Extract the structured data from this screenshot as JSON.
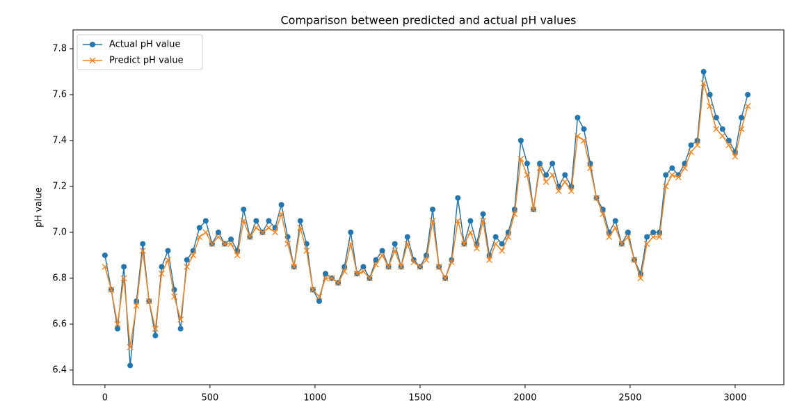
{
  "chart_data": {
    "type": "line",
    "title": "Comparison between predicted and actual pH values",
    "y_label": "pH value",
    "x": [
      0,
      30,
      60,
      90,
      120,
      150,
      180,
      210,
      240,
      270,
      300,
      330,
      360,
      390,
      420,
      450,
      480,
      510,
      540,
      570,
      600,
      630,
      660,
      690,
      720,
      750,
      780,
      810,
      840,
      870,
      900,
      930,
      960,
      990,
      1020,
      1050,
      1080,
      1110,
      1140,
      1170,
      1200,
      1230,
      1260,
      1290,
      1320,
      1350,
      1380,
      1410,
      1440,
      1470,
      1500,
      1530,
      1560,
      1590,
      1620,
      1650,
      1680,
      1710,
      1740,
      1770,
      1800,
      1830,
      1860,
      1890,
      1920,
      1950,
      1980,
      2010,
      2040,
      2070,
      2100,
      2130,
      2160,
      2190,
      2220,
      2250,
      2280,
      2310,
      2340,
      2370,
      2400,
      2430,
      2460,
      2490,
      2520,
      2550,
      2580,
      2610,
      2640,
      2670,
      2700,
      2730,
      2760,
      2790,
      2820,
      2850,
      2880,
      2910,
      2940,
      2970,
      3000,
      3030,
      3060
    ],
    "series": [
      {
        "name": "Actual pH value",
        "color": "#1f77b4",
        "marker": "o",
        "values": [
          6.9,
          6.75,
          6.58,
          6.85,
          6.42,
          6.7,
          6.95,
          6.7,
          6.55,
          6.85,
          6.92,
          6.75,
          6.58,
          6.88,
          6.92,
          7.02,
          7.05,
          6.95,
          7.0,
          6.95,
          6.97,
          6.92,
          7.1,
          6.98,
          7.05,
          7.0,
          7.05,
          7.02,
          7.12,
          6.98,
          6.85,
          7.05,
          6.95,
          6.75,
          6.7,
          6.82,
          6.8,
          6.78,
          6.85,
          7.0,
          6.82,
          6.85,
          6.8,
          6.88,
          6.92,
          6.85,
          6.95,
          6.85,
          6.98,
          6.88,
          6.85,
          6.9,
          7.1,
          6.85,
          6.8,
          6.88,
          7.15,
          6.95,
          7.05,
          6.95,
          7.08,
          6.9,
          6.98,
          6.95,
          7.0,
          7.1,
          7.4,
          7.3,
          7.1,
          7.3,
          7.25,
          7.3,
          7.2,
          7.25,
          7.2,
          7.5,
          7.45,
          7.3,
          7.15,
          7.1,
          7.0,
          7.05,
          6.95,
          7.0,
          6.88,
          6.82,
          6.98,
          7.0,
          7.0,
          7.25,
          7.28,
          7.25,
          7.3,
          7.38,
          7.4,
          7.7,
          7.6,
          7.5,
          7.45,
          7.4,
          7.35,
          7.5,
          7.6
        ]
      },
      {
        "name": "Predict pH value",
        "color": "#ff7f0e",
        "marker": "x",
        "values": [
          6.85,
          6.75,
          6.6,
          6.8,
          6.5,
          6.68,
          6.92,
          6.7,
          6.58,
          6.82,
          6.88,
          6.72,
          6.62,
          6.85,
          6.9,
          6.98,
          7.0,
          6.95,
          6.98,
          6.95,
          6.95,
          6.9,
          7.05,
          6.98,
          7.02,
          7.0,
          7.02,
          7.0,
          7.08,
          6.95,
          6.85,
          7.02,
          6.92,
          6.75,
          6.72,
          6.8,
          6.8,
          6.78,
          6.83,
          6.95,
          6.82,
          6.83,
          6.8,
          6.86,
          6.9,
          6.85,
          6.92,
          6.85,
          6.95,
          6.87,
          6.85,
          6.88,
          7.05,
          6.85,
          6.8,
          6.87,
          7.05,
          6.95,
          7.0,
          6.93,
          7.05,
          6.88,
          6.95,
          6.92,
          6.98,
          7.08,
          7.32,
          7.25,
          7.1,
          7.28,
          7.22,
          7.25,
          7.18,
          7.22,
          7.18,
          7.42,
          7.4,
          7.28,
          7.15,
          7.08,
          6.98,
          7.02,
          6.95,
          6.98,
          6.88,
          6.8,
          6.95,
          6.98,
          6.98,
          7.2,
          7.25,
          7.24,
          7.28,
          7.35,
          7.38,
          7.65,
          7.55,
          7.45,
          7.42,
          7.38,
          7.33,
          7.45,
          7.55
        ]
      }
    ],
    "xlim": [
      -152,
      3232
    ],
    "ylim": [
      6.336,
      7.882
    ],
    "xticks": [
      0,
      500,
      1000,
      1500,
      2000,
      2500,
      3000
    ],
    "yticks": [
      6.4,
      6.6,
      6.8,
      {
        "value": 7,
        "label": "7.0"
      },
      7.2,
      7.4,
      7.6,
      7.8
    ],
    "legend": "upper left"
  }
}
